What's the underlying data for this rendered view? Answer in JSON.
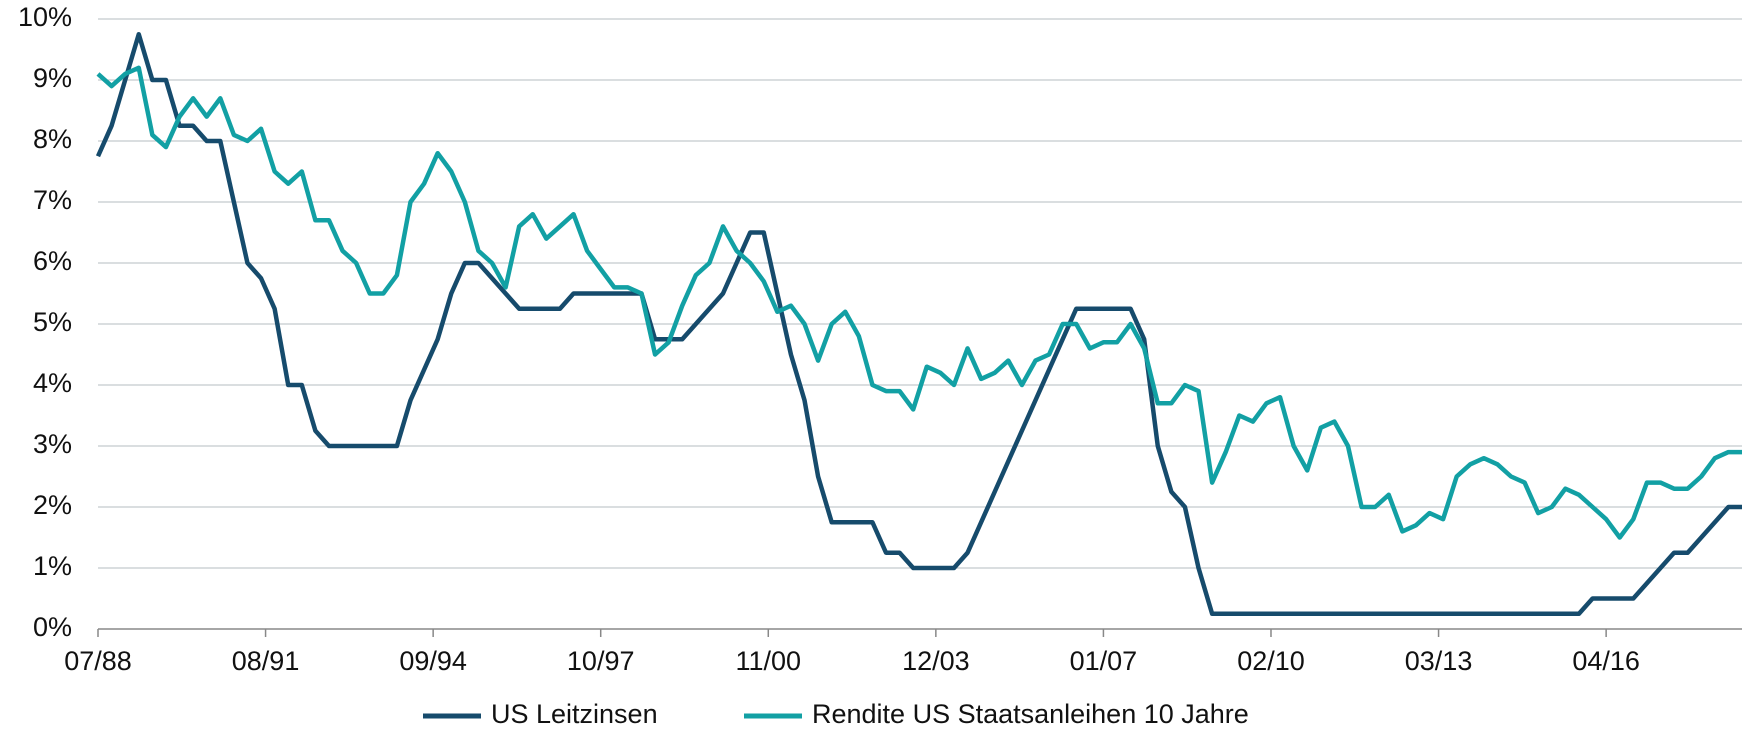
{
  "chart_data": {
    "type": "line",
    "x": [
      1988.5,
      1988.75,
      1989,
      1989.25,
      1989.5,
      1989.75,
      1990,
      1990.25,
      1990.5,
      1990.75,
      1991,
      1991.25,
      1991.5,
      1991.75,
      1992,
      1992.25,
      1992.5,
      1992.75,
      1993,
      1993.25,
      1993.5,
      1993.75,
      1994,
      1994.25,
      1994.5,
      1994.75,
      1995,
      1995.25,
      1995.5,
      1995.75,
      1996,
      1996.25,
      1996.5,
      1996.75,
      1997,
      1997.25,
      1997.5,
      1997.75,
      1998,
      1998.25,
      1998.5,
      1998.75,
      1999,
      1999.25,
      1999.5,
      1999.75,
      2000,
      2000.25,
      2000.5,
      2000.75,
      2001,
      2001.25,
      2001.5,
      2001.75,
      2002,
      2002.25,
      2002.5,
      2002.75,
      2003,
      2003.25,
      2003.5,
      2003.75,
      2004,
      2004.25,
      2004.5,
      2004.75,
      2005,
      2005.25,
      2005.5,
      2005.75,
      2006,
      2006.25,
      2006.5,
      2006.75,
      2007,
      2007.25,
      2007.5,
      2007.75,
      2008,
      2008.25,
      2008.5,
      2008.75,
      2009,
      2009.25,
      2009.5,
      2009.75,
      2010,
      2010.25,
      2010.5,
      2010.75,
      2011,
      2011.25,
      2011.5,
      2011.75,
      2012,
      2012.25,
      2012.5,
      2012.75,
      2013,
      2013.25,
      2013.5,
      2013.75,
      2014,
      2014.25,
      2014.5,
      2014.75,
      2015,
      2015.25,
      2015.5,
      2015.75,
      2016,
      2016.25,
      2016.5,
      2016.75,
      2017,
      2017.25,
      2017.5,
      2017.75,
      2018,
      2018.25,
      2018.5,
      2018.75
    ],
    "series": [
      {
        "name": "US Leitzinsen",
        "color": "#164b6c",
        "values": [
          7.75,
          8.25,
          9.0,
          9.75,
          9.0,
          9.0,
          8.25,
          8.25,
          8.0,
          8.0,
          7.0,
          6.0,
          5.75,
          5.25,
          4.0,
          4.0,
          3.25,
          3.0,
          3,
          3,
          3,
          3,
          3.0,
          3.75,
          4.25,
          4.75,
          5.5,
          6.0,
          6.0,
          5.75,
          5.5,
          5.25,
          5.25,
          5.25,
          5.25,
          5.5,
          5.5,
          5.5,
          5.5,
          5.5,
          5.5,
          4.75,
          4.75,
          4.75,
          5.0,
          5.25,
          5.5,
          6.0,
          6.5,
          6.5,
          5.5,
          4.5,
          3.75,
          2.5,
          1.75,
          1.75,
          1.75,
          1.75,
          1.25,
          1.25,
          1.0,
          1.0,
          1.0,
          1.0,
          1.25,
          1.75,
          2.25,
          2.75,
          3.25,
          3.75,
          4.25,
          4.75,
          5.25,
          5.25,
          5.25,
          5.25,
          5.25,
          4.75,
          3.0,
          2.25,
          2.0,
          1.0,
          0.25,
          0.25,
          0.25,
          0.25,
          0.25,
          0.25,
          0.25,
          0.25,
          0.25,
          0.25,
          0.25,
          0.25,
          0.25,
          0.25,
          0.25,
          0.25,
          0.25,
          0.25,
          0.25,
          0.25,
          0.25,
          0.25,
          0.25,
          0.25,
          0.25,
          0.25,
          0.25,
          0.25,
          0.5,
          0.5,
          0.5,
          0.5,
          0.75,
          1.0,
          1.25,
          1.25,
          1.5,
          1.75,
          2.0,
          2.0
        ]
      },
      {
        "name": "Rendite US Staatsanleihen 10 Jahre",
        "color": "#12a0a4",
        "values": [
          9.1,
          8.9,
          9.1,
          9.2,
          8.1,
          7.9,
          8.4,
          8.7,
          8.4,
          8.7,
          8.1,
          8.0,
          8.2,
          7.5,
          7.3,
          7.5,
          6.7,
          6.7,
          6.2,
          6.0,
          5.5,
          5.5,
          5.8,
          7.0,
          7.3,
          7.8,
          7.5,
          7.0,
          6.2,
          6.0,
          5.6,
          6.6,
          6.8,
          6.4,
          6.6,
          6.8,
          6.2,
          5.9,
          5.6,
          5.6,
          5.5,
          4.5,
          4.7,
          5.3,
          5.8,
          6.0,
          6.6,
          6.2,
          6.0,
          5.7,
          5.2,
          5.3,
          5.0,
          4.4,
          5.0,
          5.2,
          4.8,
          4.0,
          3.9,
          3.9,
          3.6,
          4.3,
          4.2,
          4.0,
          4.6,
          4.1,
          4.2,
          4.4,
          4.0,
          4.4,
          4.5,
          5.0,
          5.0,
          4.6,
          4.7,
          4.7,
          5.0,
          4.6,
          3.7,
          3.7,
          4.0,
          3.9,
          2.4,
          2.9,
          3.5,
          3.4,
          3.7,
          3.8,
          3.0,
          2.6,
          3.3,
          3.4,
          3.0,
          2.0,
          2.0,
          2.2,
          1.6,
          1.7,
          1.9,
          1.8,
          2.5,
          2.7,
          2.8,
          2.7,
          2.5,
          2.4,
          1.9,
          2.0,
          2.3,
          2.2,
          2.0,
          1.8,
          1.5,
          1.8,
          2.4,
          2.4,
          2.3,
          2.3,
          2.5,
          2.8,
          2.9,
          2.9
        ]
      }
    ],
    "xlim": [
      1988.5,
      2018.75
    ],
    "xticks": [
      {
        "value": 1988.5,
        "label": "07/88"
      },
      {
        "value": 1991.5833,
        "label": "08/91"
      },
      {
        "value": 1994.6667,
        "label": "09/94"
      },
      {
        "value": 1997.75,
        "label": "10/97"
      },
      {
        "value": 2000.8333,
        "label": "11/00"
      },
      {
        "value": 2003.9167,
        "label": "12/03"
      },
      {
        "value": 2007.0,
        "label": "01/07"
      },
      {
        "value": 2010.0833,
        "label": "02/10"
      },
      {
        "value": 2013.1667,
        "label": "03/13"
      },
      {
        "value": 2016.25,
        "label": "04/16"
      }
    ],
    "ylim": [
      0,
      10
    ],
    "yticks": [
      {
        "value": 0,
        "label": "0%"
      },
      {
        "value": 1,
        "label": "1%"
      },
      {
        "value": 2,
        "label": "2%"
      },
      {
        "value": 3,
        "label": "3%"
      },
      {
        "value": 4,
        "label": "4%"
      },
      {
        "value": 5,
        "label": "5%"
      },
      {
        "value": 6,
        "label": "6%"
      },
      {
        "value": 7,
        "label": "7%"
      },
      {
        "value": 8,
        "label": "8%"
      },
      {
        "value": 9,
        "label": "9%"
      },
      {
        "value": 10,
        "label": "10%"
      }
    ],
    "grid": true,
    "legend": "bottom"
  }
}
